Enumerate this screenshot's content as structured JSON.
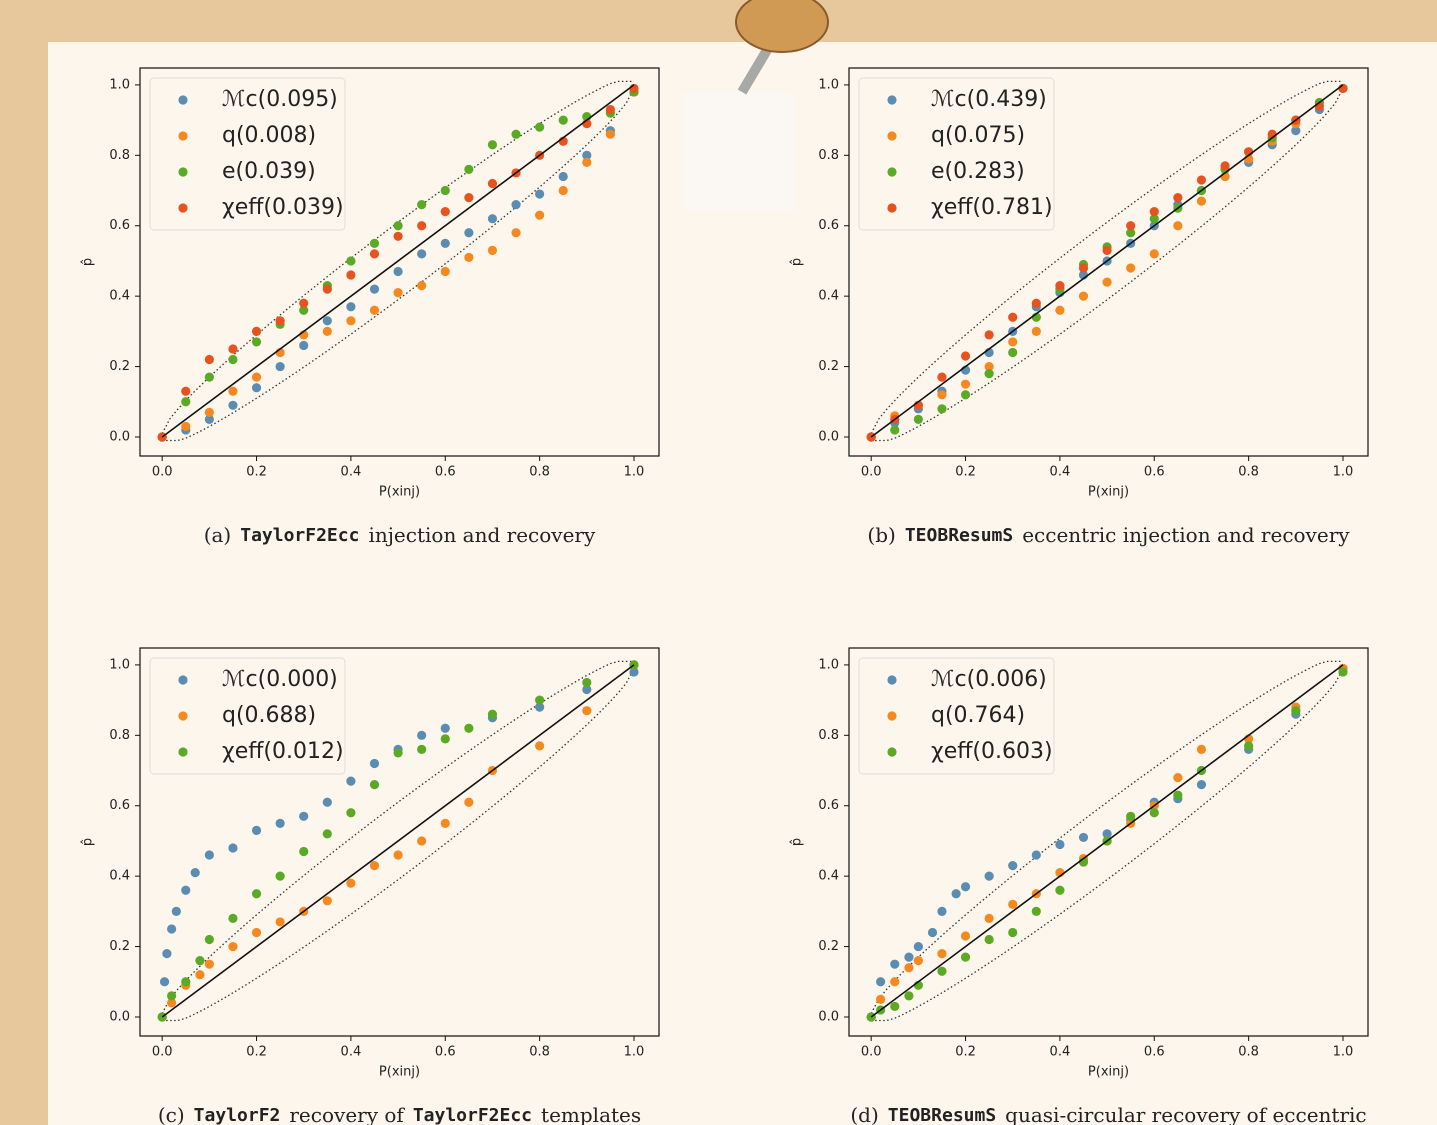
{
  "chart_data": [
    {
      "type": "scatter",
      "caption": [
        {
          "text": "(a)"
        },
        {
          "text": "TaylorF2Ecc",
          "mono": true
        },
        {
          "text": "injection and recovery"
        }
      ],
      "xlabel": "P(xinj)",
      "ylabel": "p̂",
      "xlim": [
        -0.047,
        1.053
      ],
      "ylim": [
        -0.054,
        1.048
      ],
      "xticks": [
        {
          "value": 0,
          "label": "0.0"
        },
        0.2,
        0.4,
        0.6,
        0.8,
        {
          "value": 1,
          "label": "1.0"
        }
      ],
      "yticks": [
        {
          "value": 0,
          "label": "0.0"
        },
        0.2,
        0.4,
        0.6,
        0.8,
        {
          "value": 1,
          "label": "1.0"
        }
      ],
      "legend": "upper left",
      "series": [
        {
          "name": "ℳc(0.095)",
          "color": "#5b8db3",
          "x": [
            0,
            0.05,
            0.1,
            0.15,
            0.2,
            0.25,
            0.3,
            0.35,
            0.4,
            0.45,
            0.5,
            0.55,
            0.6,
            0.65,
            0.7,
            0.75,
            0.8,
            0.85,
            0.9,
            0.95,
            1.0
          ],
          "values": [
            0,
            0.02,
            0.05,
            0.09,
            0.14,
            0.2,
            0.26,
            0.33,
            0.37,
            0.42,
            0.47,
            0.52,
            0.55,
            0.58,
            0.62,
            0.66,
            0.69,
            0.74,
            0.8,
            0.87,
            0.98
          ]
        },
        {
          "name": "q(0.008)",
          "color": "#f5891f",
          "x": [
            0,
            0.05,
            0.1,
            0.15,
            0.2,
            0.25,
            0.3,
            0.35,
            0.4,
            0.45,
            0.5,
            0.55,
            0.6,
            0.65,
            0.7,
            0.75,
            0.8,
            0.85,
            0.9,
            0.95,
            1.0
          ],
          "values": [
            0,
            0.03,
            0.07,
            0.13,
            0.17,
            0.24,
            0.29,
            0.3,
            0.33,
            0.36,
            0.41,
            0.43,
            0.47,
            0.51,
            0.53,
            0.58,
            0.63,
            0.7,
            0.78,
            0.86,
            0.98
          ]
        },
        {
          "name": "e(0.039)",
          "color": "#5aaa25",
          "x": [
            0,
            0.05,
            0.1,
            0.15,
            0.2,
            0.25,
            0.3,
            0.35,
            0.4,
            0.45,
            0.5,
            0.55,
            0.6,
            0.65,
            0.7,
            0.75,
            0.8,
            0.85,
            0.9,
            0.95,
            1.0
          ],
          "values": [
            0,
            0.1,
            0.17,
            0.22,
            0.27,
            0.32,
            0.36,
            0.43,
            0.5,
            0.55,
            0.6,
            0.66,
            0.7,
            0.76,
            0.83,
            0.86,
            0.88,
            0.9,
            0.91,
            0.92,
            0.98
          ]
        },
        {
          "name": "χeff(0.039)",
          "color": "#e8521f",
          "x": [
            0,
            0.05,
            0.1,
            0.15,
            0.2,
            0.25,
            0.3,
            0.35,
            0.4,
            0.45,
            0.5,
            0.55,
            0.6,
            0.65,
            0.7,
            0.75,
            0.8,
            0.85,
            0.9,
            0.95,
            1.0
          ],
          "values": [
            0,
            0.13,
            0.22,
            0.25,
            0.3,
            0.33,
            0.38,
            0.42,
            0.46,
            0.52,
            0.57,
            0.6,
            0.64,
            0.68,
            0.72,
            0.75,
            0.8,
            0.84,
            0.89,
            0.93,
            0.99
          ]
        }
      ]
    },
    {
      "type": "scatter",
      "caption": [
        {
          "text": "(b)"
        },
        {
          "text": "TEOBResumS",
          "mono": true
        },
        {
          "text": "eccentric injection and recovery"
        }
      ],
      "xlabel": "P(xinj)",
      "ylabel": "p̂",
      "xlim": [
        -0.047,
        1.053
      ],
      "ylim": [
        -0.054,
        1.048
      ],
      "xticks": [
        {
          "value": 0,
          "label": "0.0"
        },
        0.2,
        0.4,
        0.6,
        0.8,
        {
          "value": 1,
          "label": "1.0"
        }
      ],
      "yticks": [
        {
          "value": 0,
          "label": "0.0"
        },
        0.2,
        0.4,
        0.6,
        0.8,
        {
          "value": 1,
          "label": "1.0"
        }
      ],
      "legend": "upper left",
      "series": [
        {
          "name": "ℳc(0.439)",
          "color": "#5b8db3",
          "x": [
            0,
            0.05,
            0.1,
            0.15,
            0.2,
            0.25,
            0.3,
            0.35,
            0.4,
            0.45,
            0.5,
            0.55,
            0.6,
            0.65,
            0.7,
            0.75,
            0.8,
            0.85,
            0.9,
            0.95,
            1.0
          ],
          "values": [
            0,
            0.04,
            0.08,
            0.13,
            0.19,
            0.24,
            0.3,
            0.37,
            0.41,
            0.46,
            0.5,
            0.55,
            0.6,
            0.66,
            0.7,
            0.74,
            0.78,
            0.83,
            0.87,
            0.93,
            0.99
          ]
        },
        {
          "name": "q(0.075)",
          "color": "#f5891f",
          "x": [
            0,
            0.05,
            0.1,
            0.15,
            0.2,
            0.25,
            0.3,
            0.35,
            0.4,
            0.45,
            0.5,
            0.55,
            0.6,
            0.65,
            0.7,
            0.75,
            0.8,
            0.85,
            0.9,
            0.95,
            1.0
          ],
          "values": [
            0,
            0.06,
            0.09,
            0.12,
            0.15,
            0.2,
            0.27,
            0.3,
            0.36,
            0.4,
            0.44,
            0.48,
            0.52,
            0.6,
            0.67,
            0.74,
            0.79,
            0.84,
            0.89,
            0.95,
            0.99
          ]
        },
        {
          "name": "e(0.283)",
          "color": "#5aaa25",
          "x": [
            0,
            0.05,
            0.1,
            0.15,
            0.2,
            0.25,
            0.3,
            0.35,
            0.4,
            0.45,
            0.5,
            0.55,
            0.6,
            0.65,
            0.7,
            0.75,
            0.8,
            0.85,
            0.9,
            0.95,
            1.0
          ],
          "values": [
            0,
            0.02,
            0.05,
            0.08,
            0.12,
            0.18,
            0.24,
            0.34,
            0.42,
            0.49,
            0.54,
            0.58,
            0.62,
            0.65,
            0.7,
            0.76,
            0.81,
            0.85,
            0.9,
            0.95,
            0.99
          ]
        },
        {
          "name": "χeff(0.781)",
          "color": "#e8521f",
          "x": [
            0,
            0.05,
            0.1,
            0.15,
            0.2,
            0.25,
            0.3,
            0.35,
            0.4,
            0.45,
            0.5,
            0.55,
            0.6,
            0.65,
            0.7,
            0.75,
            0.8,
            0.85,
            0.9,
            0.95,
            1.0
          ],
          "values": [
            0,
            0.05,
            0.09,
            0.17,
            0.23,
            0.29,
            0.34,
            0.38,
            0.43,
            0.48,
            0.53,
            0.6,
            0.64,
            0.68,
            0.73,
            0.77,
            0.81,
            0.86,
            0.9,
            0.94,
            0.99
          ]
        }
      ]
    },
    {
      "type": "scatter",
      "caption": [
        {
          "text": "(c)"
        },
        {
          "text": "TaylorF2",
          "mono": true
        },
        {
          "text": "recovery of"
        },
        {
          "text": "TaylorF2Ecc",
          "mono": true
        },
        {
          "text": "templates"
        }
      ],
      "xlabel": "P(xinj)",
      "ylabel": "p̂",
      "xlim": [
        -0.047,
        1.053
      ],
      "ylim": [
        -0.054,
        1.048
      ],
      "xticks": [
        {
          "value": 0,
          "label": "0.0"
        },
        0.2,
        0.4,
        0.6,
        0.8,
        {
          "value": 1,
          "label": "1.0"
        }
      ],
      "yticks": [
        {
          "value": 0,
          "label": "0.0"
        },
        0.2,
        0.4,
        0.6,
        0.8,
        {
          "value": 1,
          "label": "1.0"
        }
      ],
      "legend": "upper left",
      "series": [
        {
          "name": "ℳc(0.000)",
          "color": "#5b8db3",
          "x": [
            0,
            0.005,
            0.01,
            0.02,
            0.03,
            0.05,
            0.07,
            0.1,
            0.15,
            0.2,
            0.25,
            0.3,
            0.35,
            0.4,
            0.45,
            0.5,
            0.55,
            0.6,
            0.7,
            0.8,
            0.9,
            1.0
          ],
          "values": [
            0,
            0.1,
            0.18,
            0.25,
            0.3,
            0.36,
            0.41,
            0.46,
            0.48,
            0.53,
            0.55,
            0.57,
            0.61,
            0.67,
            0.72,
            0.76,
            0.8,
            0.82,
            0.85,
            0.88,
            0.93,
            0.98
          ]
        },
        {
          "name": "q(0.688)",
          "color": "#f5891f",
          "x": [
            0,
            0.02,
            0.05,
            0.08,
            0.1,
            0.15,
            0.2,
            0.25,
            0.3,
            0.35,
            0.4,
            0.45,
            0.5,
            0.55,
            0.6,
            0.65,
            0.7,
            0.8,
            0.9,
            1.0
          ],
          "values": [
            0,
            0.04,
            0.09,
            0.12,
            0.15,
            0.2,
            0.24,
            0.27,
            0.3,
            0.33,
            0.38,
            0.43,
            0.46,
            0.5,
            0.55,
            0.61,
            0.7,
            0.77,
            0.87,
            1.0
          ]
        },
        {
          "name": "χeff(0.012)",
          "color": "#5aaa25",
          "x": [
            0,
            0.02,
            0.05,
            0.08,
            0.1,
            0.15,
            0.2,
            0.25,
            0.3,
            0.35,
            0.4,
            0.45,
            0.5,
            0.55,
            0.6,
            0.65,
            0.7,
            0.8,
            0.9,
            1.0
          ],
          "values": [
            0,
            0.06,
            0.1,
            0.16,
            0.22,
            0.28,
            0.35,
            0.4,
            0.47,
            0.52,
            0.58,
            0.66,
            0.75,
            0.76,
            0.79,
            0.82,
            0.86,
            0.9,
            0.95,
            1.0
          ]
        }
      ]
    },
    {
      "type": "scatter",
      "caption": [
        {
          "text": "(d)"
        },
        {
          "text": "TEOBResumS",
          "mono": true
        },
        {
          "text": "quasi-circular recovery of eccentric"
        }
      ],
      "xlabel": "P(xinj)",
      "ylabel": "p̂",
      "xlim": [
        -0.047,
        1.053
      ],
      "ylim": [
        -0.054,
        1.048
      ],
      "xticks": [
        {
          "value": 0,
          "label": "0.0"
        },
        0.2,
        0.4,
        0.6,
        0.8,
        {
          "value": 1,
          "label": "1.0"
        }
      ],
      "yticks": [
        {
          "value": 0,
          "label": "0.0"
        },
        0.2,
        0.4,
        0.6,
        0.8,
        {
          "value": 1,
          "label": "1.0"
        }
      ],
      "legend": "upper left",
      "series": [
        {
          "name": "ℳc(0.006)",
          "color": "#5b8db3",
          "x": [
            0,
            0.02,
            0.05,
            0.08,
            0.1,
            0.13,
            0.15,
            0.18,
            0.2,
            0.25,
            0.3,
            0.35,
            0.4,
            0.45,
            0.5,
            0.55,
            0.6,
            0.65,
            0.7,
            0.8,
            0.9,
            1.0
          ],
          "values": [
            0,
            0.1,
            0.15,
            0.17,
            0.2,
            0.24,
            0.3,
            0.35,
            0.37,
            0.4,
            0.43,
            0.46,
            0.49,
            0.51,
            0.52,
            0.56,
            0.61,
            0.62,
            0.66,
            0.76,
            0.86,
            0.99
          ]
        },
        {
          "name": "q(0.764)",
          "color": "#f5891f",
          "x": [
            0,
            0.02,
            0.05,
            0.08,
            0.1,
            0.15,
            0.2,
            0.25,
            0.3,
            0.35,
            0.4,
            0.45,
            0.5,
            0.55,
            0.6,
            0.65,
            0.7,
            0.8,
            0.9,
            1.0
          ],
          "values": [
            0,
            0.05,
            0.1,
            0.14,
            0.16,
            0.18,
            0.23,
            0.28,
            0.32,
            0.35,
            0.41,
            0.45,
            0.5,
            0.55,
            0.6,
            0.68,
            0.76,
            0.79,
            0.88,
            0.99
          ]
        },
        {
          "name": "χeff(0.603)",
          "color": "#5aaa25",
          "x": [
            0,
            0.02,
            0.05,
            0.08,
            0.1,
            0.15,
            0.2,
            0.25,
            0.3,
            0.35,
            0.4,
            0.45,
            0.5,
            0.55,
            0.6,
            0.65,
            0.7,
            0.8,
            0.9,
            1.0
          ],
          "values": [
            0,
            0.02,
            0.03,
            0.06,
            0.09,
            0.13,
            0.17,
            0.22,
            0.24,
            0.3,
            0.36,
            0.44,
            0.5,
            0.57,
            0.58,
            0.63,
            0.7,
            0.77,
            0.87,
            0.98
          ]
        }
      ]
    }
  ]
}
